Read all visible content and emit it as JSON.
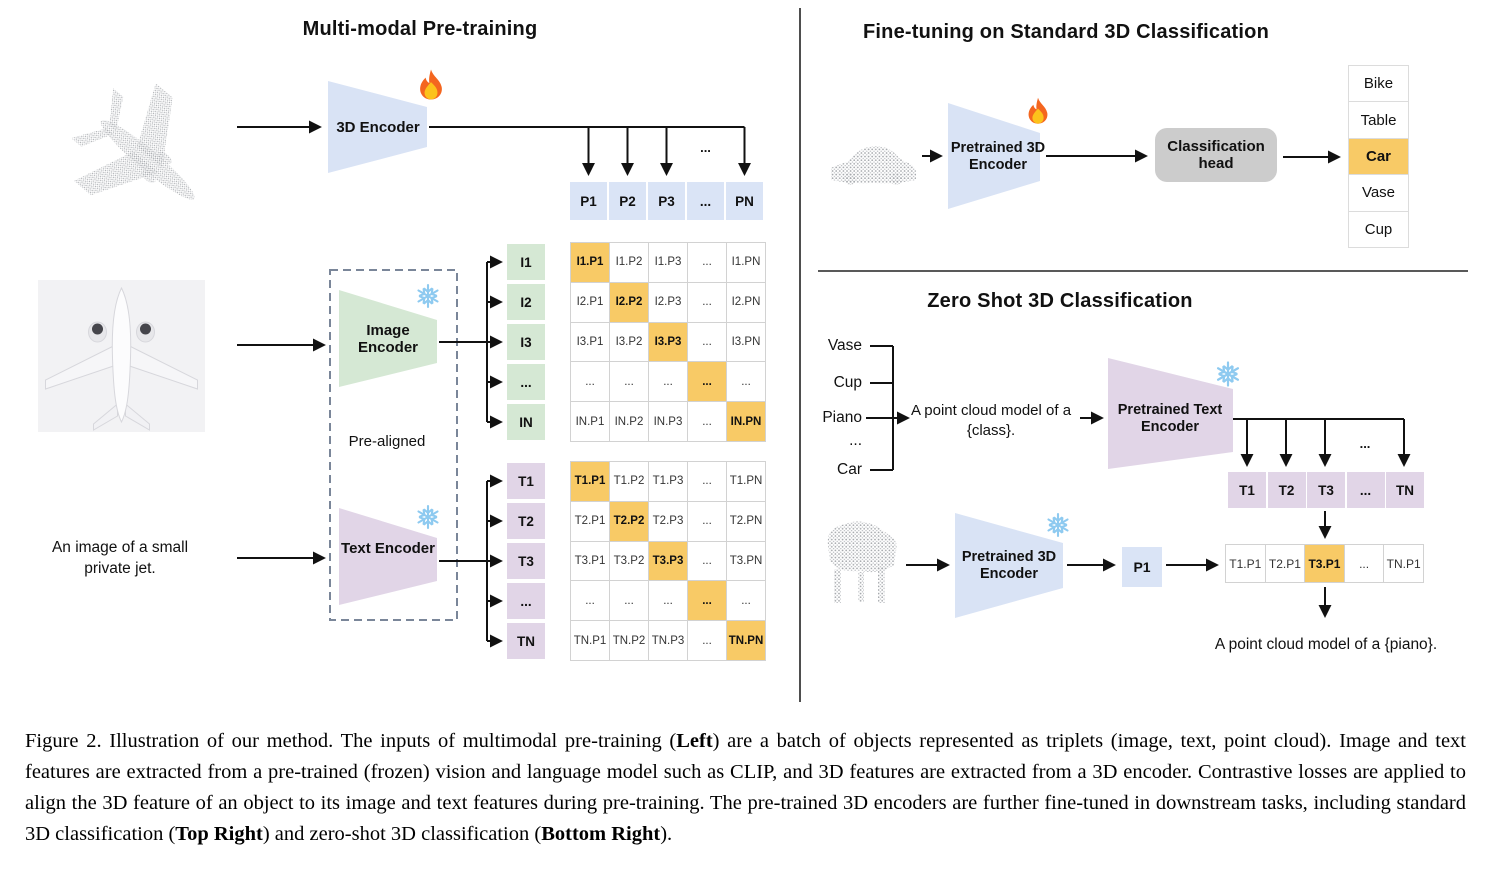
{
  "palette": {
    "blue": "#dae4f6",
    "green": "#d5e8d4",
    "purple": "#e1d5e7",
    "highlight": "#f8ca66",
    "head_gray": "#cccccc"
  },
  "icons": [
    "fire-icon",
    "snowflake-icon",
    "airplane-point-cloud",
    "airplane-photo",
    "car-point-cloud",
    "piano-point-cloud"
  ],
  "left": {
    "title": "Multi-modal Pre-training",
    "encoder_3d_label": "3D Encoder",
    "p_row": [
      "P1",
      "P2",
      "P3",
      "...",
      "PN"
    ],
    "p_branch_ellipsis": "...",
    "image_encoder_label": "Image Encoder",
    "text_encoder_label": "Text Encoder",
    "pre_aligned_label": "Pre-aligned",
    "image_caption": "An image of a small private jet.",
    "i_headers": [
      "I1",
      "I2",
      "I3",
      "...",
      "IN"
    ],
    "t_headers": [
      "T1",
      "T2",
      "T3",
      "...",
      "TN"
    ],
    "i_matrix": [
      [
        "I1.P1",
        "I1.P2",
        "I1.P3",
        "...",
        "I1.PN"
      ],
      [
        "I2.P1",
        "I2.P2",
        "I2.P3",
        "...",
        "I2.PN"
      ],
      [
        "I3.P1",
        "I3.P2",
        "I3.P3",
        "...",
        "I3.PN"
      ],
      [
        "...",
        "...",
        "...",
        "...",
        "..."
      ],
      [
        "IN.P1",
        "IN.P2",
        "IN.P3",
        "...",
        "IN.PN"
      ]
    ],
    "t_matrix": [
      [
        "T1.P1",
        "T1.P2",
        "T1.P3",
        "...",
        "T1.PN"
      ],
      [
        "T2.P1",
        "T2.P2",
        "T2.P3",
        "...",
        "T2.PN"
      ],
      [
        "T3.P1",
        "T3.P2",
        "T3.P3",
        "...",
        "T3.PN"
      ],
      [
        "...",
        "...",
        "...",
        "...",
        "..."
      ],
      [
        "TN.P1",
        "TN.P2",
        "TN.P3",
        "...",
        "TN.PN"
      ]
    ]
  },
  "top_right": {
    "title": "Fine-tuning on Standard 3D Classification",
    "encoder_label": "Pretrained 3D Encoder",
    "head_label": "Classification head",
    "classes": [
      "Bike",
      "Table",
      "Car",
      "Vase",
      "Cup"
    ],
    "predicted_class": "Car"
  },
  "bottom_right": {
    "title": "Zero Shot 3D Classification",
    "candidate_classes": [
      "Vase",
      "Cup",
      "Piano",
      "...",
      "Car"
    ],
    "prompt": "A point cloud model of a {class}.",
    "text_encoder_label": "Pretrained Text Encoder",
    "encoder_label": "Pretrained 3D Encoder",
    "t_row": [
      "T1",
      "T2",
      "T3",
      "...",
      "TN"
    ],
    "t_branch_ellipsis": "...",
    "p1_label": "P1",
    "similarity_row": [
      "T1.P1",
      "T2.P1",
      "T3.P1",
      "...",
      "TN.P1"
    ],
    "matched_cell": "T3.P1",
    "result": "A point cloud model of a {piano}."
  },
  "caption": {
    "segments": [
      {
        "text": "Figure 2. Illustration of our method. The inputs of multimodal pre-training (",
        "bold": false
      },
      {
        "text": "Left",
        "bold": true
      },
      {
        "text": ") are a batch of objects represented as triplets (image, text, point cloud). Image and text features are extracted from a pre-trained (frozen) vision and language model such as CLIP, and 3D features are extracted from a 3D encoder. Contrastive losses are applied to align the 3D feature of an object to its image and text features during pre-training. The pre-trained 3D encoders are further fine-tuned in downstream tasks, including standard 3D classification (",
        "bold": false
      },
      {
        "text": "Top Right",
        "bold": true
      },
      {
        "text": ") and zero-shot 3D classification (",
        "bold": false
      },
      {
        "text": "Bottom Right",
        "bold": true
      },
      {
        "text": ").",
        "bold": false
      }
    ]
  }
}
